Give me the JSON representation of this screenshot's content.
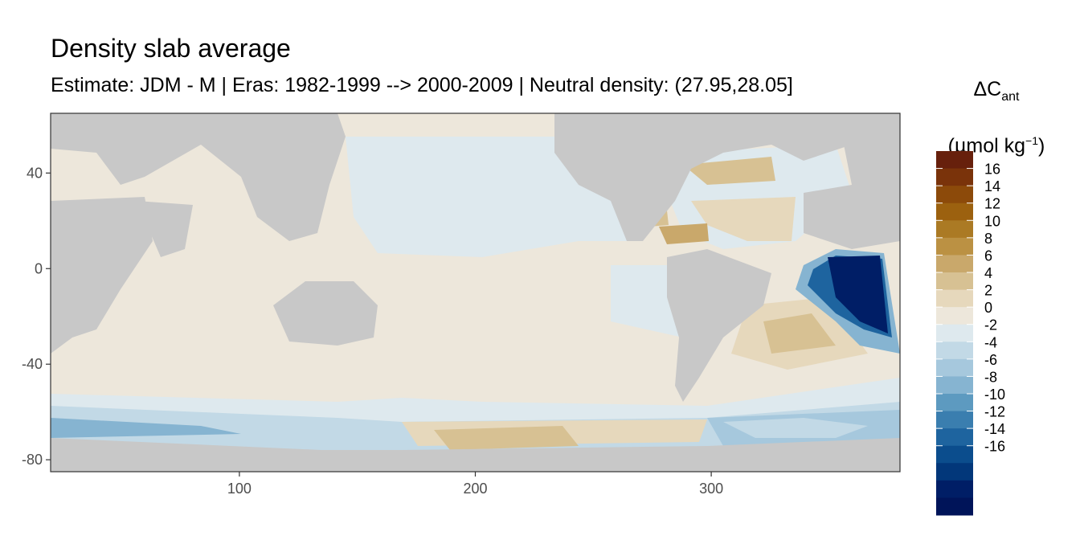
{
  "title": "Density slab average",
  "subtitle": "Estimate: JDM - M | Eras: 1982-1999 --> 2000-2009 | Neutral density: (27.95,28.05]",
  "legend": {
    "symbol": "ΔC",
    "symbol_sub": "ant",
    "unit_open": "(µmol kg",
    "unit_sup": "−1",
    "unit_close": ")",
    "colors": [
      "#67200c",
      "#7a330a",
      "#8c4a0a",
      "#9c610f",
      "#ab7a24",
      "#bb9143",
      "#c9a86b",
      "#d7c193",
      "#e6d8bc",
      "#ede7db",
      "#dee9ee",
      "#c2d9e6",
      "#a6c8dd",
      "#86b4d1",
      "#5d9ac0",
      "#3a7eaf",
      "#1e649f",
      "#0b4d8d",
      "#02377a",
      "#001e66",
      "#001459"
    ],
    "tick_labels": [
      "16",
      "14",
      "12",
      "10",
      "8",
      "6",
      "4",
      "2",
      "0",
      "-2",
      "-4",
      "-6",
      "-8",
      "-10",
      "-12",
      "-14",
      "-16"
    ],
    "land_color": "#c8c8c8"
  },
  "axes": {
    "x_ticks": [
      "100",
      "200",
      "300"
    ],
    "x_values": [
      100,
      200,
      300
    ],
    "y_ticks": [
      "40",
      "0",
      "-40",
      "-80"
    ],
    "y_values": [
      40,
      0,
      -40,
      -80
    ],
    "xlim": [
      20,
      380
    ],
    "ylim": [
      -85,
      65
    ]
  }
}
